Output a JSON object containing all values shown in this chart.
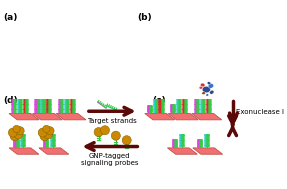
{
  "bg": "#ffffff",
  "plat_face": "#f07070",
  "plat_edge": "#c05050",
  "magenta": "#dd44dd",
  "cyan": "#33cccc",
  "red_probe": "#dd2222",
  "green": "#33cc44",
  "gray": "#888888",
  "gold": "#cc8800",
  "gold_edge": "#886600",
  "arrow_col": "#5a0808",
  "lbl_fs": 6.5,
  "anno_fs": 5.0,
  "panel_labels": [
    "(a)",
    "(b)",
    "(c)",
    "(d)"
  ],
  "label_target": "Target strands",
  "label_exo": "Exonuclease I",
  "label_gnp": "GNP-tagged\nsignaling probes",
  "enzyme_colors": [
    "#1a3a8a",
    "#cc2222",
    "#2266aa",
    "#884400",
    "#113399",
    "#aa1111"
  ],
  "fig_w": 2.87,
  "fig_h": 1.89,
  "dpi": 100
}
